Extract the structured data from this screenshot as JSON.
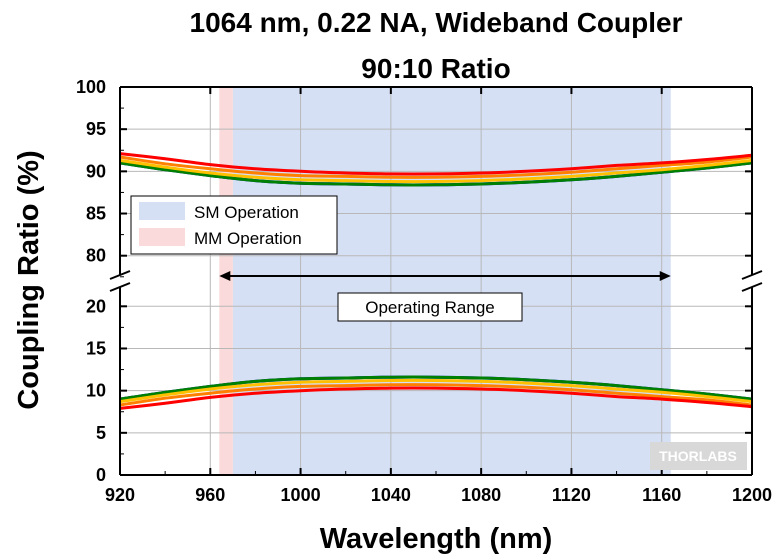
{
  "chart_data": {
    "type": "line",
    "title": [
      "1064 nm, 0.22 NA, Wideband Coupler",
      "90:10 Ratio"
    ],
    "xlabel": "Wavelength (nm)",
    "ylabel": "Coupling Ratio (%)",
    "xlim": [
      920,
      1200
    ],
    "x_ticks": [
      920,
      960,
      1000,
      1040,
      1080,
      1120,
      1160,
      1200
    ],
    "y_axis_break": true,
    "upper_panel": {
      "ylim": [
        77,
        100
      ],
      "y_ticks": [
        80,
        85,
        90,
        95,
        100
      ]
    },
    "lower_panel": {
      "ylim": [
        0,
        23
      ],
      "y_ticks": [
        0,
        5,
        10,
        15,
        20
      ]
    },
    "grid": true,
    "regions": [
      {
        "label": "SM Operation",
        "x_range": [
          970,
          1164
        ],
        "color": "#d6e0f5"
      },
      {
        "label": "MM Operation",
        "x_range": [
          964,
          970
        ],
        "color": "#fadada"
      }
    ],
    "legend": {
      "position": "left-middle",
      "entries": [
        "SM Operation",
        "MM Operation"
      ]
    },
    "annotation": {
      "text": "Operating Range",
      "x_range": [
        964,
        1164
      ]
    },
    "logo": "THORLABS",
    "x": [
      920,
      940,
      960,
      980,
      1000,
      1020,
      1040,
      1060,
      1080,
      1100,
      1120,
      1140,
      1160,
      1180,
      1200
    ],
    "series": [
      {
        "color": "#0000ff",
        "upper": [
          91.0,
          90.2,
          89.5,
          88.9,
          88.6,
          88.5,
          88.4,
          88.4,
          88.5,
          88.7,
          89.0,
          89.4,
          89.9,
          90.4,
          91.0
        ],
        "lower": [
          9.0,
          9.8,
          10.5,
          11.1,
          11.4,
          11.5,
          11.6,
          11.6,
          11.5,
          11.3,
          11.0,
          10.6,
          10.1,
          9.6,
          9.0
        ]
      },
      {
        "color": "#008000",
        "upper": [
          91.0,
          90.2,
          89.5,
          88.9,
          88.6,
          88.5,
          88.4,
          88.4,
          88.5,
          88.7,
          89.0,
          89.4,
          89.9,
          90.4,
          91.0
        ],
        "lower": [
          9.0,
          9.8,
          10.5,
          11.1,
          11.4,
          11.5,
          11.6,
          11.6,
          11.5,
          11.3,
          11.0,
          10.6,
          10.1,
          9.6,
          9.0
        ]
      },
      {
        "color": "#ffc000",
        "upper": [
          91.3,
          90.5,
          89.8,
          89.3,
          89.0,
          88.9,
          88.8,
          88.8,
          88.9,
          89.1,
          89.4,
          89.8,
          90.2,
          90.7,
          91.3
        ],
        "lower": [
          8.7,
          9.5,
          10.2,
          10.7,
          11.0,
          11.1,
          11.2,
          11.2,
          11.1,
          10.9,
          10.6,
          10.2,
          9.8,
          9.3,
          8.7
        ]
      },
      {
        "color": "#ff8000",
        "upper": [
          91.7,
          90.9,
          90.3,
          89.8,
          89.5,
          89.4,
          89.3,
          89.3,
          89.4,
          89.6,
          89.9,
          90.3,
          90.7,
          91.1,
          91.7
        ],
        "lower": [
          8.3,
          9.1,
          9.7,
          10.2,
          10.5,
          10.6,
          10.7,
          10.7,
          10.6,
          10.4,
          10.1,
          9.7,
          9.3,
          8.9,
          8.3
        ]
      },
      {
        "color": "#ff0000",
        "upper": [
          92.1,
          91.5,
          90.8,
          90.3,
          90.0,
          89.8,
          89.7,
          89.7,
          89.8,
          90.0,
          90.3,
          90.7,
          91.0,
          91.4,
          91.9
        ],
        "lower": [
          7.9,
          8.5,
          9.2,
          9.7,
          10.0,
          10.2,
          10.3,
          10.3,
          10.2,
          10.0,
          9.7,
          9.3,
          9.0,
          8.6,
          8.1
        ]
      }
    ]
  }
}
